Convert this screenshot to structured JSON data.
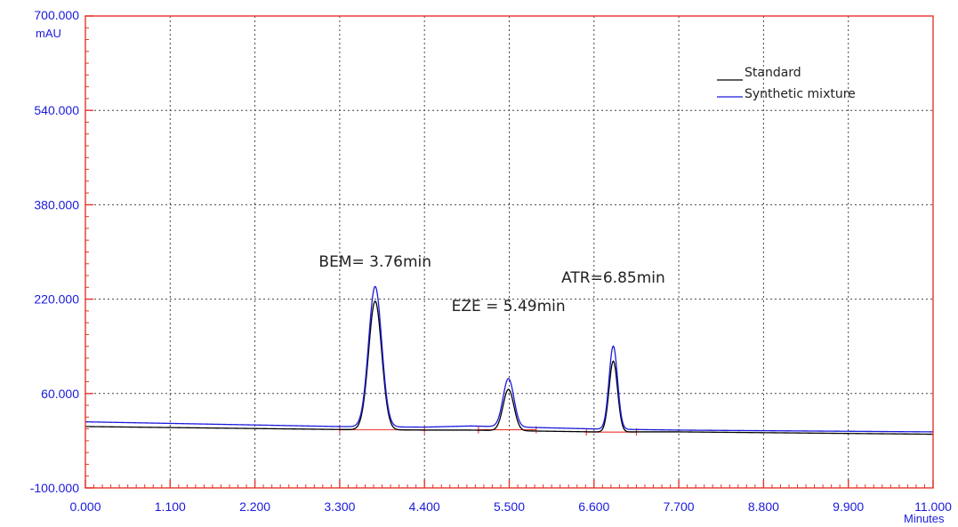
{
  "chart_data": {
    "type": "line",
    "title": "",
    "xlabel": "Minutes",
    "ylabel": "mAU",
    "xlim": [
      0,
      11
    ],
    "ylim": [
      -100,
      700
    ],
    "x_ticks": [
      "0.000",
      "1.100",
      "2.200",
      "3.300",
      "4.400",
      "5.500",
      "6.600",
      "7.700",
      "8.800",
      "9.900",
      "11.000"
    ],
    "y_ticks": [
      "700.000",
      "540.000",
      "380.000",
      "220.000",
      "60.000",
      "-100.000"
    ],
    "grid": true,
    "legend_position": "top-right",
    "series": [
      {
        "name": "Standard",
        "color": "#000000",
        "baseline": [
          [
            0,
            4
          ],
          [
            3.3,
            -1
          ],
          [
            4.4,
            -2
          ],
          [
            5.0,
            -2
          ],
          [
            6.6,
            -5
          ],
          [
            7.7,
            -5
          ],
          [
            11.0,
            -9
          ]
        ],
        "peaks": [
          {
            "rt": 3.76,
            "height": 218
          },
          {
            "rt": 5.49,
            "height": 70
          },
          {
            "rt": 6.85,
            "height": 120
          }
        ]
      },
      {
        "name": "Synthetic mixture",
        "color": "#1a1adc",
        "baseline": [
          [
            0,
            12
          ],
          [
            3.3,
            4
          ],
          [
            4.4,
            3
          ],
          [
            5.0,
            5
          ],
          [
            6.6,
            0
          ],
          [
            7.7,
            -2
          ],
          [
            11.0,
            -5
          ]
        ],
        "peaks": [
          {
            "rt": 3.76,
            "height": 238
          },
          {
            "rt": 5.49,
            "height": 82
          },
          {
            "rt": 6.85,
            "height": 141
          }
        ]
      }
    ],
    "annotations": [
      {
        "text": "BEM= 3.76min",
        "x": 3.76,
        "y": 275
      },
      {
        "text": "EZE = 5.49min",
        "x": 5.49,
        "y": 200
      },
      {
        "text": "ATR=6.85min",
        "x": 6.85,
        "y": 248
      }
    ],
    "integration_marks": [
      {
        "start": 3.3,
        "end": 4.4
      },
      {
        "start": 5.1,
        "end": 5.85
      },
      {
        "start": 6.5,
        "end": 7.15
      }
    ],
    "colors": {
      "axis": "#e8352c",
      "grid": "#444444",
      "tick_text": "#1a1adc",
      "baseline_marker": "#e8352c"
    }
  }
}
